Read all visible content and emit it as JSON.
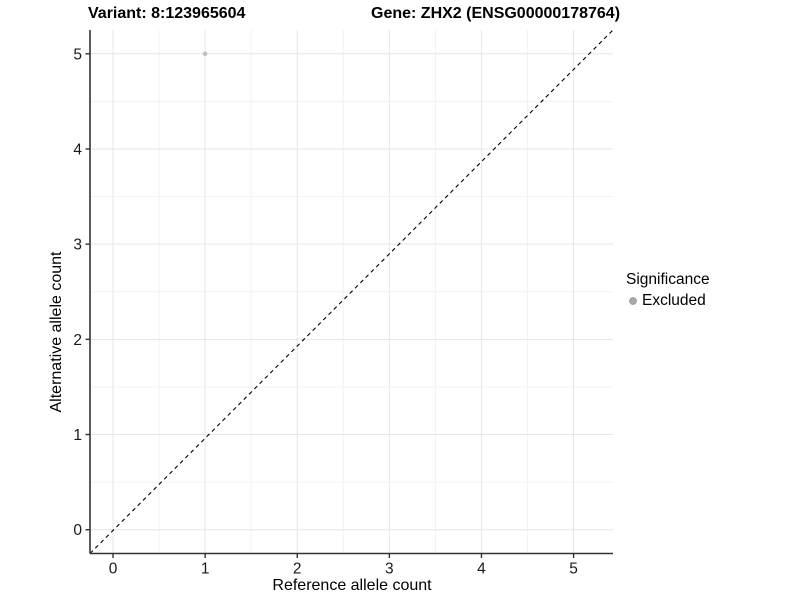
{
  "titles": {
    "left": "Variant: 8:123965604",
    "right": "Gene: ZHX2 (ENSG00000178764)"
  },
  "chart_data": {
    "type": "scatter",
    "xlabel": "Reference allele count",
    "ylabel": "Alternative allele count",
    "x_ticks": [
      0,
      1,
      2,
      3,
      4,
      5
    ],
    "y_ticks": [
      0,
      1,
      2,
      3,
      4,
      5
    ],
    "xlim": [
      -0.25,
      5.428
    ],
    "ylim": [
      -0.25,
      5.25
    ],
    "grid": {
      "major": true,
      "minor": true,
      "minor_step": 0.5
    },
    "points": [
      {
        "x": 1,
        "y": 5,
        "series": "Excluded"
      }
    ],
    "abline": {
      "slope": 1,
      "intercept": 0,
      "style": "dashed"
    },
    "legend": {
      "title": "Significance",
      "position": "right",
      "items": [
        {
          "label": "Excluded",
          "color": "#a8a8a8"
        }
      ]
    }
  },
  "colors": {
    "background": "#ffffff",
    "grid_major": "#e6e6e6",
    "grid_minor": "#f2f2f2",
    "axis_line": "#333333",
    "tick_label": "#1a1a1a",
    "abline": "#000000",
    "point": "#c0c0c0"
  }
}
